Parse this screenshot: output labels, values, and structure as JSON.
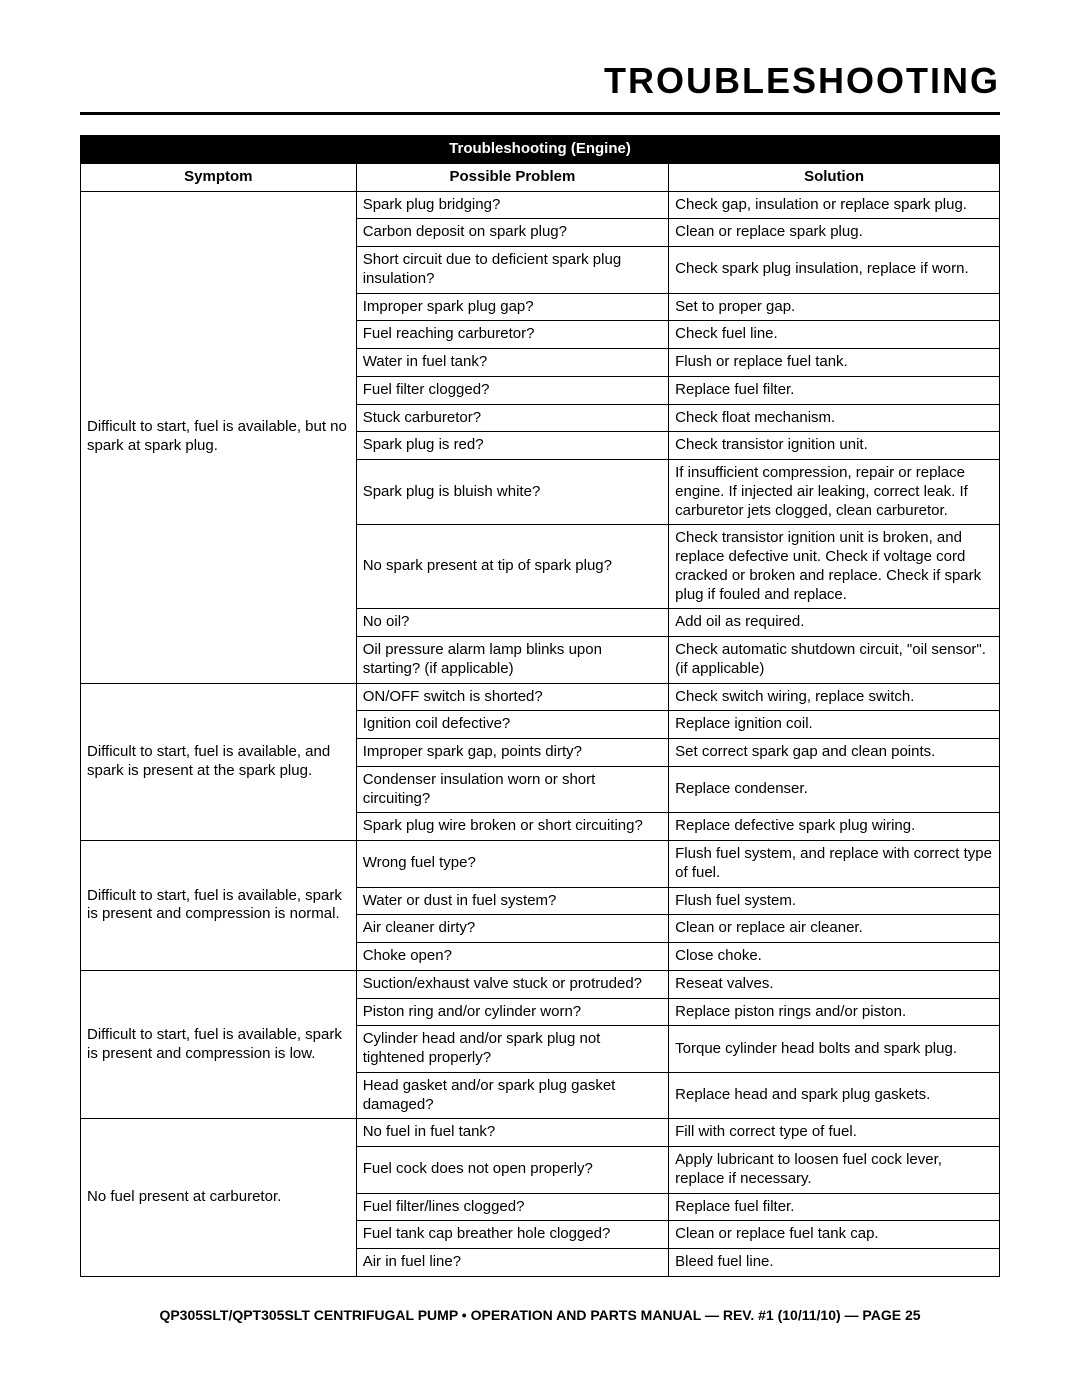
{
  "page_title": "TROUBLESHOOTING",
  "table_title": "Troubleshooting (Engine)",
  "headers": {
    "symptom": "Symptom",
    "problem": "Possible Problem",
    "solution": "Solution"
  },
  "groups": [
    {
      "symptom": "Difficult to start, fuel is available, but no spark at spark plug.",
      "rows": [
        {
          "p": "Spark plug bridging?",
          "s": "Check gap, insulation or replace spark plug."
        },
        {
          "p": "Carbon deposit on spark plug?",
          "s": "Clean or replace spark plug."
        },
        {
          "p": "Short circuit due to deficient spark plug insulation?",
          "s": "Check spark plug insulation, replace if worn."
        },
        {
          "p": "Improper spark plug gap?",
          "s": "Set to proper gap."
        },
        {
          "p": "Fuel reaching carburetor?",
          "s": "Check fuel line."
        },
        {
          "p": "Water in fuel tank?",
          "s": "Flush or replace fuel tank."
        },
        {
          "p": "Fuel filter clogged?",
          "s": "Replace fuel filter."
        },
        {
          "p": "Stuck carburetor?",
          "s": "Check float mechanism."
        },
        {
          "p": "Spark plug is red?",
          "s": "Check transistor ignition unit."
        },
        {
          "p": "Spark plug is bluish white?",
          "s": "If insufficient compression, repair or replace engine. If injected air leaking, correct leak. If carburetor jets clogged, clean carburetor."
        },
        {
          "p": "No spark present at tip of spark plug?",
          "s": "Check transistor ignition unit is broken, and replace defective unit. Check if voltage cord cracked or broken and replace. Check if spark plug if fouled and replace."
        },
        {
          "p": "No oil?",
          "s": "Add oil as required."
        },
        {
          "p": "Oil pressure alarm lamp blinks upon starting? (if applicable)",
          "s": "Check automatic shutdown circuit, \"oil sensor\". (if applicable)"
        }
      ]
    },
    {
      "symptom": "Difficult to start, fuel is available, and spark is present at the spark plug.",
      "rows": [
        {
          "p": "ON/OFF switch is shorted?",
          "s": "Check switch wiring, replace switch."
        },
        {
          "p": "Ignition coil defective?",
          "s": "Replace ignition coil."
        },
        {
          "p": "Improper spark gap, points dirty?",
          "s": "Set correct spark gap and clean points."
        },
        {
          "p": "Condenser insulation worn or short circuiting?",
          "s": "Replace condenser."
        },
        {
          "p": "Spark plug wire broken or short circuiting?",
          "s": "Replace defective spark plug wiring."
        }
      ]
    },
    {
      "symptom": "Difficult to start, fuel is available, spark is present and compression is normal.",
      "rows": [
        {
          "p": "Wrong fuel type?",
          "s": "Flush fuel system, and replace  with correct type of fuel."
        },
        {
          "p": "Water or dust in fuel system?",
          "s": "Flush fuel system."
        },
        {
          "p": "Air cleaner dirty?",
          "s": "Clean or replace air cleaner."
        },
        {
          "p": "Choke open?",
          "s": "Close choke."
        }
      ]
    },
    {
      "symptom": "Difficult to start, fuel is available, spark is present and compression is low.",
      "rows": [
        {
          "p": "Suction/exhaust valve stuck or protruded?",
          "s": "Reseat valves."
        },
        {
          "p": "Piston ring and/or cylinder worn?",
          "s": "Replace piston rings and/or piston."
        },
        {
          "p": "Cylinder head and/or spark plug not tightened properly?",
          "s": "Torque cylinder head bolts and spark plug."
        },
        {
          "p": "Head gasket and/or spark plug gasket damaged?",
          "s": "Replace head and spark plug gaskets."
        }
      ]
    },
    {
      "symptom": "No fuel present at carburetor.",
      "rows": [
        {
          "p": "No fuel in fuel tank?",
          "s": "Fill with correct type of fuel."
        },
        {
          "p": "Fuel cock does not open properly?",
          "s": "Apply lubricant to loosen fuel cock lever, replace if necessary."
        },
        {
          "p": "Fuel filter/lines clogged?",
          "s": "Replace fuel filter."
        },
        {
          "p": "Fuel tank cap breather hole clogged?",
          "s": "Clean or replace fuel tank cap."
        },
        {
          "p": "Air in fuel line?",
          "s": "Bleed fuel line."
        }
      ]
    }
  ],
  "footer": "QP305SLT/QPT305SLT CENTRIFUGAL PUMP • OPERATION AND PARTS MANUAL — REV. #1 (10/11/10) — PAGE 25"
}
